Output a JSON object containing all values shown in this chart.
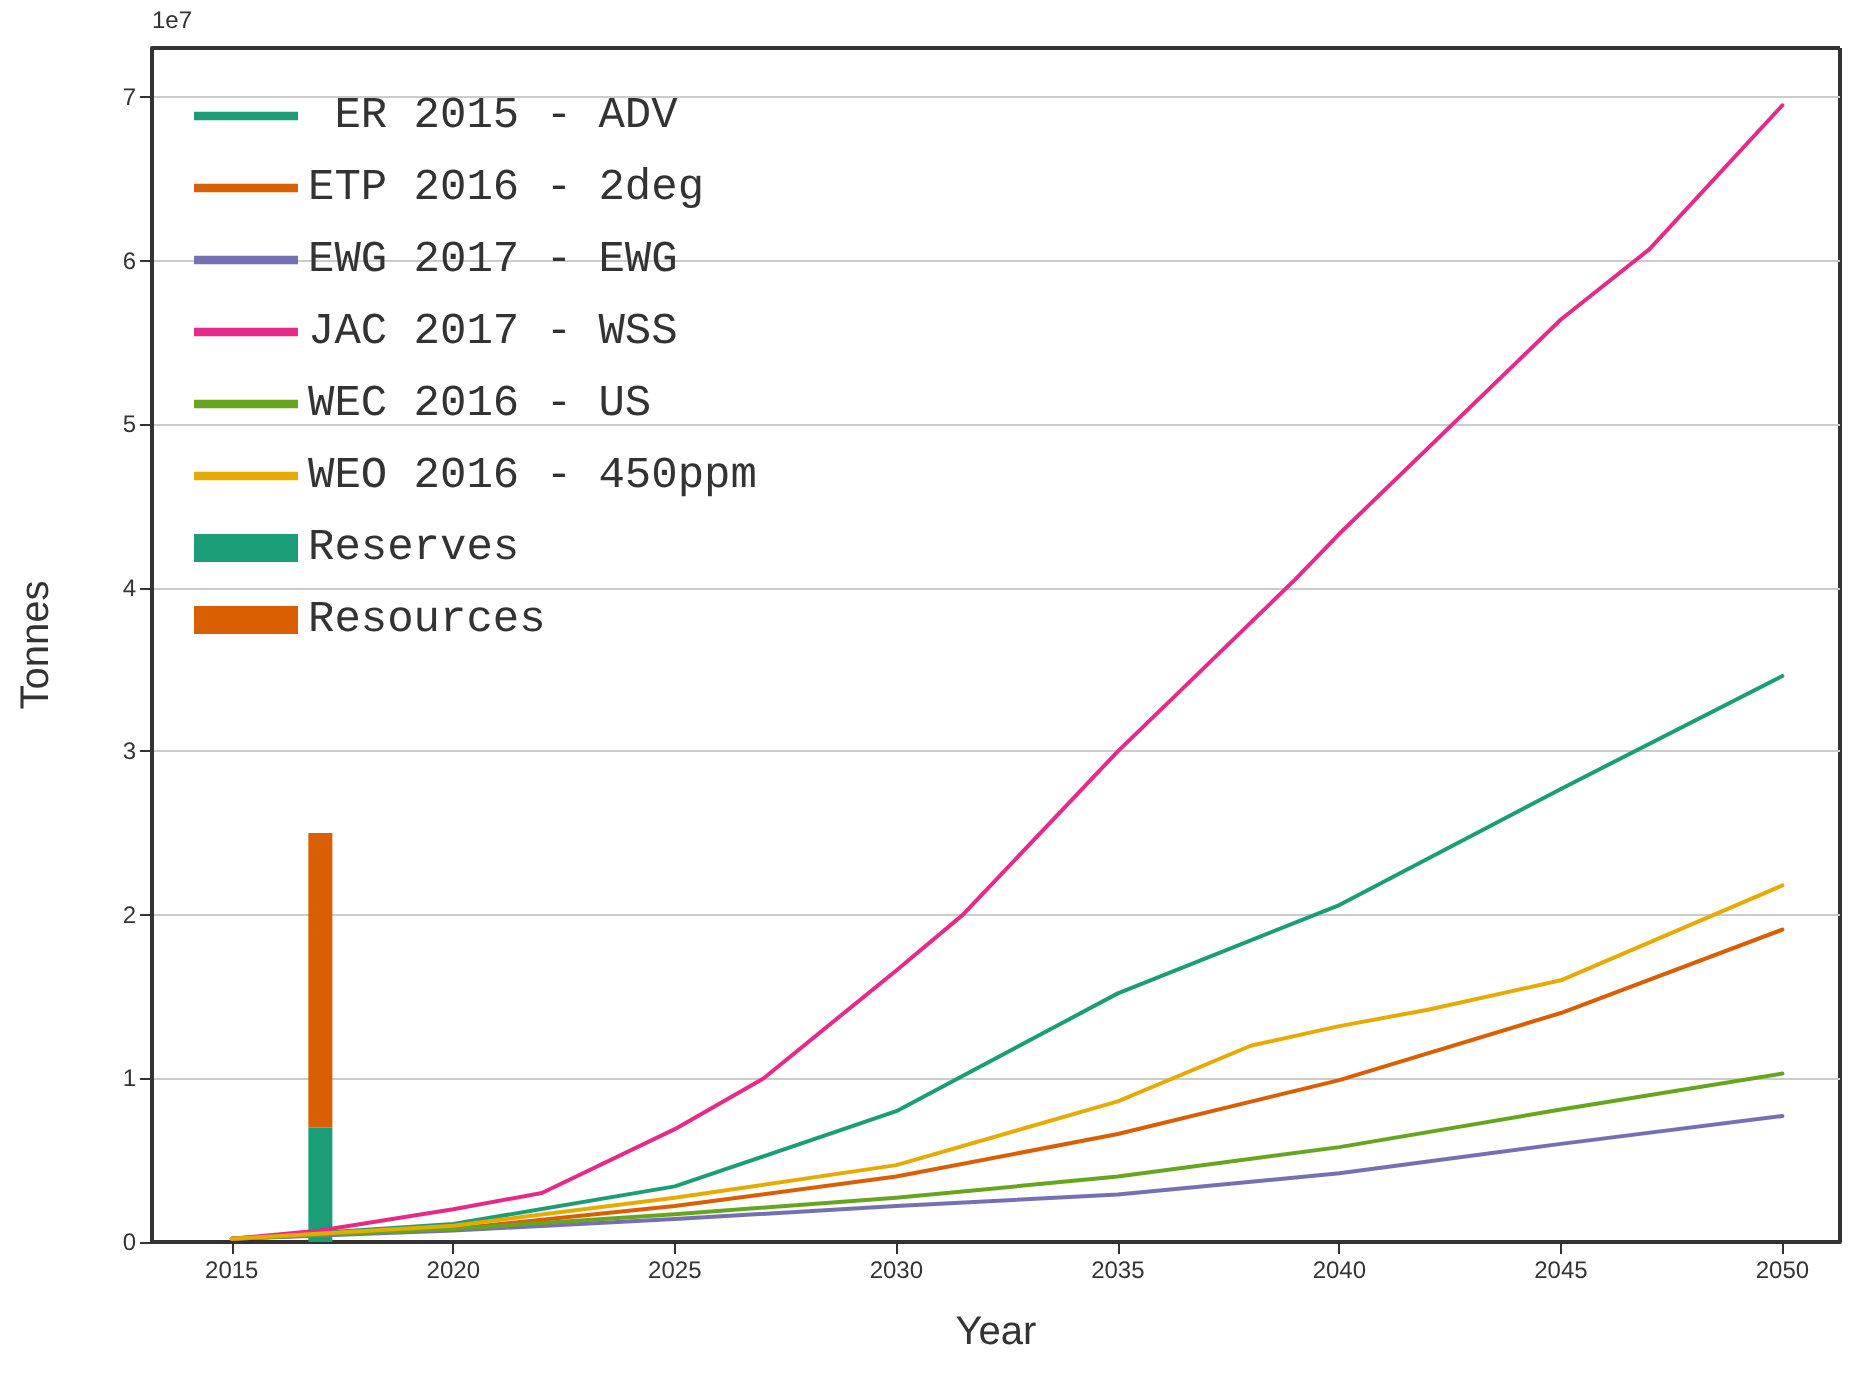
{
  "chart_data": {
    "type": "line",
    "xlabel": "Year",
    "ylabel": "Tonnes",
    "annotations": [
      "1e7"
    ],
    "xlim": [
      2013.2,
      2051.3
    ],
    "xticks": [
      2015,
      2020,
      2025,
      2030,
      2035,
      2040,
      2045,
      2050
    ],
    "ylim": [
      0,
      7.3
    ],
    "yticks": [
      0,
      1,
      2,
      3,
      4,
      5,
      6,
      7
    ],
    "grid": "y",
    "legend": "top left",
    "stacked": true,
    "series": [
      {
        "name": " ER 2015 - ADV",
        "color": "#1b9e77",
        "x": [
          2015,
          2020,
          2025,
          2030,
          2035,
          2040,
          2045,
          2050
        ],
        "values": [
          0.02,
          0.11,
          0.34,
          0.8,
          1.52,
          2.06,
          2.77,
          3.46
        ]
      },
      {
        "name": "ETP 2016 - 2deg",
        "color": "#d95f02",
        "x": [
          2015,
          2020,
          2025,
          2030,
          2035,
          2040,
          2045,
          2050
        ],
        "values": [
          0.02,
          0.08,
          0.22,
          0.4,
          0.66,
          0.99,
          1.4,
          1.91
        ]
      },
      {
        "name": "EWG 2017 - EWG",
        "color": "#7570b3",
        "x": [
          2015,
          2020,
          2025,
          2030,
          2035,
          2040,
          2045,
          2050
        ],
        "values": [
          0.02,
          0.07,
          0.14,
          0.22,
          0.29,
          0.42,
          0.6,
          0.77
        ]
      },
      {
        "name": "JAC 2017 - WSS",
        "color": "#e7298a",
        "x": [
          2015,
          2017,
          2020,
          2022,
          2025,
          2027,
          2030,
          2031.5,
          2035,
          2039,
          2040,
          2045,
          2047,
          2050
        ],
        "values": [
          0.02,
          0.07,
          0.2,
          0.3,
          0.69,
          1.0,
          1.66,
          2.0,
          3.0,
          4.05,
          4.33,
          5.64,
          6.07,
          6.95
        ]
      },
      {
        "name": "WEC 2016 - US",
        "color": "#66a61e",
        "x": [
          2015,
          2020,
          2025,
          2030,
          2035,
          2040,
          2045,
          2050
        ],
        "values": [
          0.02,
          0.08,
          0.17,
          0.27,
          0.4,
          0.58,
          0.81,
          1.03
        ]
      },
      {
        "name": "WEO 2016 - 450ppm",
        "color": "#e6ab02",
        "x": [
          2015,
          2020,
          2025,
          2030,
          2035,
          2038,
          2040,
          2042,
          2045,
          2050
        ],
        "values": [
          0.02,
          0.1,
          0.27,
          0.47,
          0.86,
          1.2,
          1.32,
          1.42,
          1.6,
          2.18
        ]
      },
      {
        "name": "Reserves",
        "type": "bar",
        "color": "#1b9e77",
        "x": [
          2017
        ],
        "values": [
          0.7
        ]
      },
      {
        "name": "Resources",
        "type": "bar",
        "color": "#d95f02",
        "x": [
          2017
        ],
        "values": [
          1.8
        ]
      }
    ]
  }
}
